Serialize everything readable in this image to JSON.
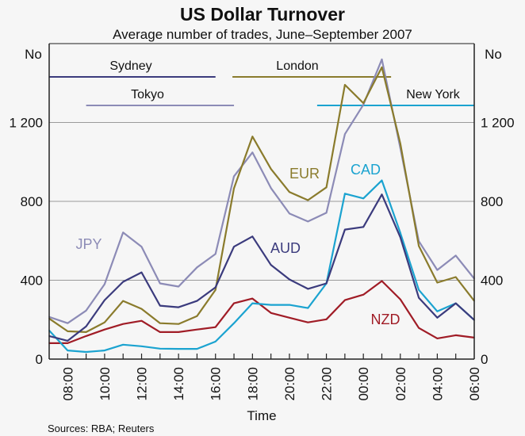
{
  "chart_data": {
    "type": "line",
    "title": "US Dollar Turnover",
    "subtitle": "Average number of trades, June–September 2007",
    "xlabel": "Time",
    "ylabel_left": "No",
    "ylabel_right": "No",
    "ylim": [
      0,
      1600
    ],
    "yticks": [
      0,
      400,
      800,
      1200
    ],
    "ytick_labels": [
      "0",
      "400",
      "800",
      "1 200"
    ],
    "grid": true,
    "x": [
      "07:00",
      "08:00",
      "09:00",
      "10:00",
      "11:00",
      "12:00",
      "13:00",
      "14:00",
      "15:00",
      "16:00",
      "17:00",
      "18:00",
      "19:00",
      "20:00",
      "21:00",
      "22:00",
      "23:00",
      "00:00",
      "01:00",
      "02:00",
      "03:00",
      "04:00",
      "05:00",
      "06:00"
    ],
    "xtick_labels": [
      "08:00",
      "10:00",
      "12:00",
      "14:00",
      "16:00",
      "18:00",
      "20:00",
      "22:00",
      "00:00",
      "02:00",
      "04:00",
      "06:00"
    ],
    "series": [
      {
        "name": "JPY",
        "color": "#8c8bb6",
        "values": [
          214,
          182,
          246,
          380,
          642,
          570,
          384,
          368,
          465,
          533,
          927,
          1048,
          867,
          738,
          698,
          742,
          1141,
          1290,
          1520,
          1070,
          598,
          452,
          525,
          408
        ]
      },
      {
        "name": "EUR",
        "color": "#8a7b2c",
        "values": [
          206,
          141,
          137,
          186,
          295,
          255,
          182,
          178,
          218,
          351,
          866,
          1129,
          964,
          847,
          806,
          871,
          1391,
          1298,
          1480,
          1093,
          574,
          388,
          416,
          295
        ]
      },
      {
        "name": "NZD",
        "color": "#a01c26",
        "values": [
          81,
          81,
          117,
          150,
          178,
          194,
          137,
          137,
          150,
          162,
          283,
          307,
          234,
          210,
          186,
          202,
          299,
          327,
          396,
          303,
          158,
          105,
          121,
          109
        ]
      },
      {
        "name": "CAD",
        "color": "#1ba3d0",
        "values": [
          145,
          44,
          36,
          44,
          73,
          65,
          53,
          52,
          52,
          89,
          182,
          283,
          275,
          275,
          259,
          384,
          839,
          815,
          906,
          640,
          351,
          242,
          283,
          198
        ]
      },
      {
        "name": "AUD",
        "color": "#3b3b7d",
        "values": [
          117,
          93,
          166,
          299,
          392,
          440,
          271,
          263,
          295,
          364,
          570,
          622,
          477,
          404,
          356,
          384,
          657,
          670,
          835,
          618,
          311,
          210,
          283,
          198
        ]
      }
    ],
    "sessions": [
      {
        "name": "Sydney",
        "color": "#3b3b7d",
        "start": "07:00",
        "end": "16:00"
      },
      {
        "name": "London",
        "color": "#8a7b2c",
        "start": "16:55",
        "end": "01:30"
      },
      {
        "name": "Tokyo",
        "color": "#8c8bb6",
        "start": "09:00",
        "end": "17:00"
      },
      {
        "name": "New York",
        "color": "#1ba3d0",
        "start": "21:30",
        "end": "06:00"
      }
    ],
    "source": "Sources: RBA; Reuters"
  }
}
